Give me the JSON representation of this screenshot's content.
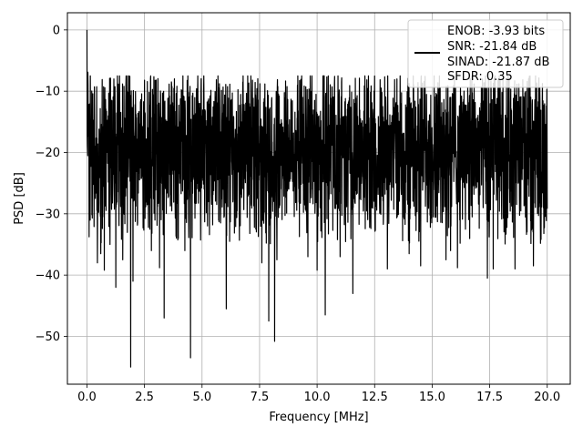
{
  "chart_data": {
    "type": "line",
    "title": "",
    "xlabel": "Frequency [MHz]",
    "ylabel": "PSD [dB]",
    "xlim": [
      -0.85,
      21.0
    ],
    "ylim": [
      -57.8,
      2.8
    ],
    "xticks": [
      0.0,
      2.5,
      5.0,
      7.5,
      10.0,
      12.5,
      15.0,
      17.5,
      20.0
    ],
    "xtick_labels": [
      "0.0",
      "2.5",
      "5.0",
      "7.5",
      "10.0",
      "12.5",
      "15.0",
      "17.5",
      "20.0"
    ],
    "yticks": [
      0,
      -10,
      -20,
      -30,
      -40,
      -50
    ],
    "ytick_labels": [
      "0",
      "−10",
      "−20",
      "−30",
      "−40",
      "−50"
    ],
    "grid": true,
    "legend_position": "top-right",
    "legend_lines": [
      "ENOB: -3.93 bits",
      "SNR: -21.84 dB",
      "SINAD: -21.87 dB",
      "SFDR: 0.35"
    ],
    "series": [
      {
        "color": "#000000",
        "description": "Dense noise floor spanning 0 to 20 MHz, fluctuating between about -8 dB and -30 dB with occasional deep nulls; peak of 0 dB at DC",
        "x_range": [
          0.0,
          20.0
        ],
        "peak": {
          "x": 0.0,
          "y": 0.0
        },
        "upper_envelope_db": -8,
        "lower_envelope_db": -30,
        "notable_dips": [
          {
            "x": 0.45,
            "y": -38.0
          },
          {
            "x": 0.6,
            "y": -36.5
          },
          {
            "x": 0.75,
            "y": -39.2
          },
          {
            "x": 1.0,
            "y": -35.0
          },
          {
            "x": 1.25,
            "y": -42.0
          },
          {
            "x": 1.55,
            "y": -37.5
          },
          {
            "x": 1.9,
            "y": -55.0
          },
          {
            "x": 2.0,
            "y": -41.0
          },
          {
            "x": 2.8,
            "y": -36.0
          },
          {
            "x": 3.15,
            "y": -38.8
          },
          {
            "x": 3.35,
            "y": -47.0
          },
          {
            "x": 4.25,
            "y": -36.0
          },
          {
            "x": 4.5,
            "y": -53.5
          },
          {
            "x": 6.05,
            "y": -45.5
          },
          {
            "x": 7.6,
            "y": -38.0
          },
          {
            "x": 7.9,
            "y": -47.5
          },
          {
            "x": 8.15,
            "y": -50.8
          },
          {
            "x": 8.25,
            "y": -37.5
          },
          {
            "x": 9.6,
            "y": -37.0
          },
          {
            "x": 10.0,
            "y": -39.2
          },
          {
            "x": 10.35,
            "y": -46.5
          },
          {
            "x": 11.0,
            "y": -37.0
          },
          {
            "x": 11.55,
            "y": -43.0
          },
          {
            "x": 13.05,
            "y": -39.0
          },
          {
            "x": 14.0,
            "y": -36.5
          },
          {
            "x": 14.5,
            "y": -38.5
          },
          {
            "x": 15.6,
            "y": -37.5
          },
          {
            "x": 15.8,
            "y": -36.0
          },
          {
            "x": 16.1,
            "y": -38.8
          },
          {
            "x": 17.4,
            "y": -40.5
          },
          {
            "x": 17.65,
            "y": -39.0
          },
          {
            "x": 18.6,
            "y": -39.0
          },
          {
            "x": 19.4,
            "y": -38.5
          }
        ]
      }
    ]
  }
}
